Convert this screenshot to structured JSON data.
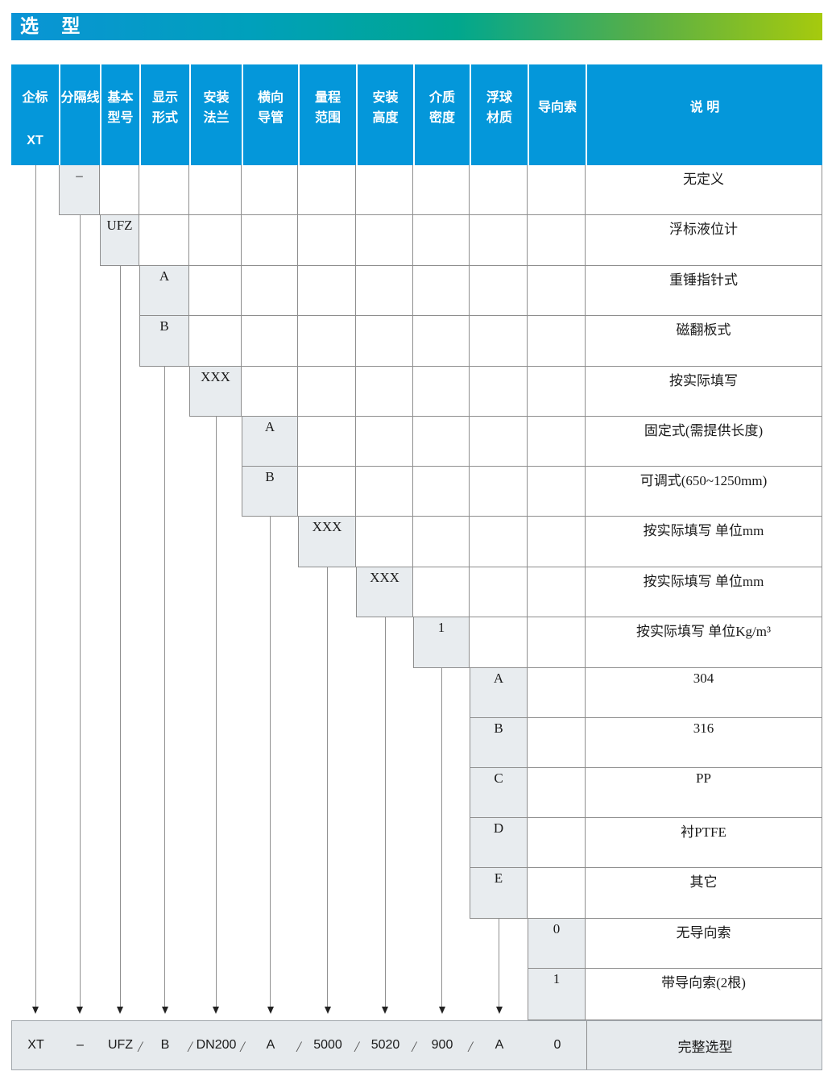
{
  "title": "选 型",
  "colors": {
    "header_blue": "#0497da",
    "titlebar_gradient_start": "#0a94d6",
    "titlebar_gradient_end": "#a6ca0d",
    "option_cell_fill": "#e8ecef",
    "summary_fill": "#e6eaed",
    "grid_line": "#8e8e8e"
  },
  "header": {
    "columns": [
      {
        "lines": [
          "企标"
        ],
        "style": "top",
        "code": "XT"
      },
      {
        "lines": [
          "分隔线"
        ],
        "style": "top"
      },
      {
        "lines": [
          "基本",
          "型号"
        ],
        "style": "two"
      },
      {
        "lines": [
          "显示",
          "形式"
        ],
        "style": "two"
      },
      {
        "lines": [
          "安装",
          "法兰"
        ],
        "style": "two"
      },
      {
        "lines": [
          "横向",
          "导管"
        ],
        "style": "two"
      },
      {
        "lines": [
          "量程",
          "范围"
        ],
        "style": "two"
      },
      {
        "lines": [
          "安装",
          "高度"
        ],
        "style": "two"
      },
      {
        "lines": [
          "介质",
          "密度"
        ],
        "style": "two"
      },
      {
        "lines": [
          "浮球",
          "材质"
        ],
        "style": "two"
      },
      {
        "lines": [
          "导向索"
        ],
        "style": "mid"
      },
      {
        "lines": [
          "说  明"
        ],
        "style": "mid"
      }
    ]
  },
  "rows": [
    {
      "col": 1,
      "code": "–",
      "desc": "无定义"
    },
    {
      "col": 2,
      "code": "UFZ",
      "desc": "浮标液位计"
    },
    {
      "col": 3,
      "code": "A",
      "desc": "重锤指针式"
    },
    {
      "col": 3,
      "code": "B",
      "desc": "磁翻板式"
    },
    {
      "col": 4,
      "code": "XXX",
      "desc": "按实际填写"
    },
    {
      "col": 5,
      "code": "A",
      "desc": "固定式(需提供长度)"
    },
    {
      "col": 5,
      "code": "B",
      "desc": "可调式(650~1250mm)"
    },
    {
      "col": 6,
      "code": "XXX",
      "desc": "按实际填写  单位mm"
    },
    {
      "col": 7,
      "code": "XXX",
      "desc": "按实际填写  单位mm"
    },
    {
      "col": 8,
      "code": "1",
      "desc": "按实际填写  单位Kg/m³"
    },
    {
      "col": 9,
      "code": "A",
      "desc": "304"
    },
    {
      "col": 9,
      "code": "B",
      "desc": "316"
    },
    {
      "col": 9,
      "code": "C",
      "desc": "PP"
    },
    {
      "col": 9,
      "code": "D",
      "desc": "衬PTFE"
    },
    {
      "col": 9,
      "code": "E",
      "desc": "其它"
    },
    {
      "col": 10,
      "code": "0",
      "desc": "无导向索"
    },
    {
      "col": 10,
      "code": "1",
      "desc": "带导向索(2根)"
    }
  ],
  "summary": {
    "values": [
      "XT",
      "–",
      "UFZ",
      "B",
      "DN200",
      "A",
      "5000",
      "5020",
      "900",
      "A",
      "0"
    ],
    "separator": "/",
    "separators_after": [
      2,
      3,
      4,
      5,
      6,
      7,
      8
    ],
    "desc": "完整选型"
  }
}
